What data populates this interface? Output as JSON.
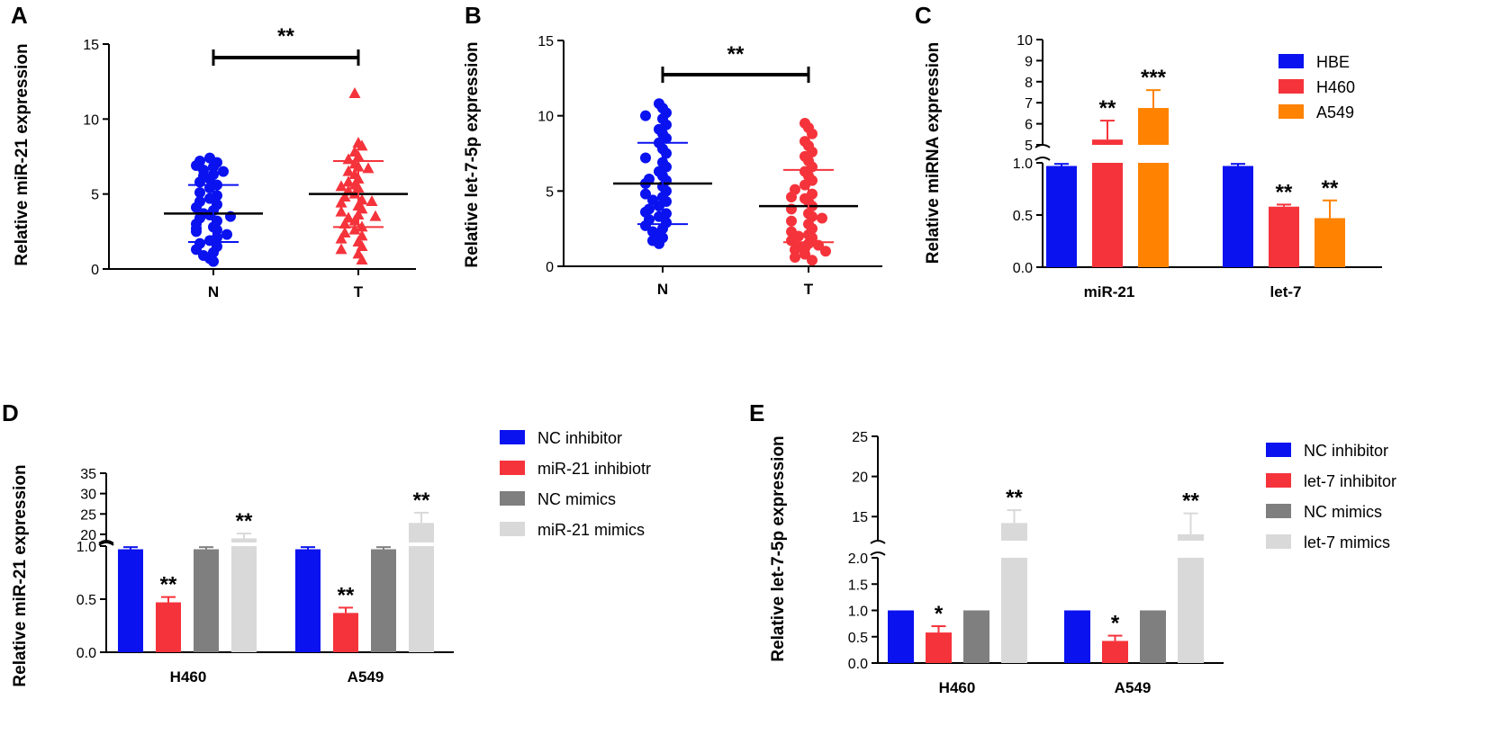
{
  "colors": {
    "blue": "#0a12f0",
    "red": "#f5333b",
    "orange": "#ff8200",
    "gray": "#7f7f7f",
    "lightgray": "#d9d9d9",
    "black": "#000000"
  },
  "chart_data": [
    {
      "panel": "A",
      "type": "scatter",
      "ylabel": "Relative miR-21 expression",
      "categories": [
        "N",
        "T"
      ],
      "yticks": [
        "0",
        "5",
        "10",
        "15"
      ],
      "ylim": [
        0,
        15
      ],
      "significance": "**",
      "groups": [
        {
          "name": "N",
          "color": "blue",
          "marker": "circle",
          "mean": 3.7,
          "sd": 1.9,
          "points": [
            7.4,
            7.2,
            7.1,
            6.9,
            6.8,
            6.6,
            6.5,
            6.3,
            6.2,
            6.0,
            5.8,
            5.6,
            5.4,
            5.1,
            4.9,
            4.7,
            4.5,
            4.3,
            4.1,
            3.9,
            3.7,
            3.6,
            3.4,
            3.2,
            3.0,
            2.8,
            2.6,
            2.5,
            2.3,
            2.1,
            1.9,
            1.7,
            1.5,
            1.3,
            1.1,
            0.9,
            0.7,
            0.5,
            3.5,
            2.7
          ]
        },
        {
          "name": "T",
          "color": "red",
          "marker": "triangle",
          "mean": 5.0,
          "sd": 2.2,
          "points": [
            11.7,
            8.4,
            8.2,
            7.8,
            7.5,
            7.3,
            7.0,
            6.8,
            6.5,
            6.3,
            6.0,
            5.8,
            5.6,
            5.4,
            5.2,
            5.0,
            4.8,
            4.6,
            4.4,
            4.2,
            4.0,
            3.8,
            3.6,
            3.4,
            3.2,
            3.0,
            2.8,
            2.6,
            2.4,
            2.2,
            2.0,
            1.8,
            1.5,
            1.3,
            1.0,
            0.6,
            5.5,
            4.5,
            3.5,
            6.7
          ]
        }
      ]
    },
    {
      "panel": "B",
      "type": "scatter",
      "ylabel": "Relative let-7-5p expression",
      "categories": [
        "N",
        "T"
      ],
      "yticks": [
        "0",
        "5",
        "10",
        "15"
      ],
      "ylim": [
        0,
        15
      ],
      "significance": "**",
      "groups": [
        {
          "name": "N",
          "color": "blue",
          "marker": "circle",
          "mean": 5.5,
          "sd": 2.7,
          "points": [
            10.8,
            10.5,
            10.2,
            10.0,
            9.8,
            9.4,
            9.1,
            8.8,
            8.5,
            8.2,
            7.8,
            7.5,
            7.2,
            6.9,
            6.6,
            6.3,
            6.0,
            5.7,
            5.5,
            5.3,
            5.0,
            4.8,
            4.6,
            4.3,
            4.0,
            3.8,
            3.5,
            3.3,
            3.1,
            2.9,
            2.7,
            2.5,
            2.3,
            2.1,
            1.9,
            1.7,
            1.5,
            5.8,
            4.4,
            3.6
          ]
        },
        {
          "name": "T",
          "color": "red",
          "marker": "circle",
          "mean": 4.0,
          "sd": 2.4,
          "points": [
            9.5,
            9.2,
            8.8,
            8.3,
            8.0,
            7.6,
            7.3,
            7.0,
            6.6,
            6.3,
            6.0,
            5.7,
            5.4,
            5.1,
            4.8,
            4.5,
            4.3,
            4.0,
            3.8,
            3.5,
            3.3,
            3.0,
            2.8,
            2.5,
            2.3,
            2.1,
            1.9,
            1.7,
            1.5,
            1.3,
            1.2,
            1.1,
            1.0,
            0.8,
            0.6,
            0.4,
            4.6,
            3.2,
            2.0,
            1.4
          ]
        }
      ]
    },
    {
      "panel": "C",
      "type": "bar",
      "ylabel": "Relative miRNA expression",
      "categories": [
        "miR-21",
        "let-7"
      ],
      "broken_axis": {
        "lower": [
          0,
          1.0
        ],
        "upper": [
          5,
          10
        ]
      },
      "yticks_lower": [
        "0.0",
        "0.5",
        "1.0"
      ],
      "yticks_upper": [
        "5",
        "6",
        "7",
        "8",
        "9",
        "10"
      ],
      "series": [
        {
          "name": "HBE",
          "color": "blue",
          "values": [
            0.97,
            0.97
          ],
          "errors": [
            0.02,
            0.02
          ],
          "sig": [
            "",
            ""
          ]
        },
        {
          "name": "H460",
          "color": "red",
          "values": [
            5.25,
            0.58
          ],
          "errors": [
            0.9,
            0.02
          ],
          "sig": [
            "**",
            "**"
          ]
        },
        {
          "name": "A549",
          "color": "orange",
          "values": [
            6.75,
            0.47
          ],
          "errors": [
            0.85,
            0.17
          ],
          "sig": [
            "***",
            "**"
          ]
        }
      ]
    },
    {
      "panel": "D",
      "type": "bar",
      "ylabel": "Relative miR-21 expression",
      "categories": [
        "H460",
        "A549"
      ],
      "broken_axis": {
        "lower": [
          0,
          1.0
        ],
        "upper": [
          18,
          35
        ]
      },
      "yticks_lower": [
        "0.0",
        "0.5",
        "1.0"
      ],
      "yticks_upper": [
        "20",
        "25",
        "30",
        "35"
      ],
      "series": [
        {
          "name": "NC inhibitor",
          "color": "blue",
          "values": [
            0.97,
            0.97
          ],
          "errors": [
            0.02,
            0.02
          ],
          "sig": [
            "",
            ""
          ]
        },
        {
          "name": "miR-21 inhibiotr",
          "color": "red",
          "values": [
            0.47,
            0.37
          ],
          "errors": [
            0.05,
            0.05
          ],
          "sig": [
            "**",
            "**"
          ]
        },
        {
          "name": "NC mimics",
          "color": "gray",
          "values": [
            0.97,
            0.97
          ],
          "errors": [
            0.02,
            0.02
          ],
          "sig": [
            "",
            ""
          ]
        },
        {
          "name": "miR-21 mimics",
          "color": "lightgray",
          "values": [
            19.0,
            22.8
          ],
          "errors": [
            1.2,
            2.5
          ],
          "sig": [
            "**",
            "**"
          ]
        }
      ]
    },
    {
      "panel": "E",
      "type": "bar",
      "ylabel": "Relative let-7-5p expression",
      "categories": [
        "H460",
        "A549"
      ],
      "broken_axis": {
        "lower": [
          0,
          2.0
        ],
        "upper": [
          12,
          25
        ]
      },
      "yticks_lower": [
        "0.0",
        "0.5",
        "1.0",
        "1.5",
        "2.0"
      ],
      "yticks_upper": [
        "15",
        "20",
        "25"
      ],
      "series": [
        {
          "name": "NC inhibitor",
          "color": "blue",
          "values": [
            1.0,
            1.0
          ],
          "errors": [
            0,
            0
          ],
          "sig": [
            "",
            ""
          ]
        },
        {
          "name": "let-7 inhibitor",
          "color": "red",
          "values": [
            0.58,
            0.42
          ],
          "errors": [
            0.12,
            0.1
          ],
          "sig": [
            "*",
            "*"
          ]
        },
        {
          "name": "NC mimics",
          "color": "gray",
          "values": [
            1.0,
            1.0
          ],
          "errors": [
            0,
            0
          ],
          "sig": [
            "",
            ""
          ]
        },
        {
          "name": "let-7 mimics",
          "color": "lightgray",
          "values": [
            14.2,
            12.8
          ],
          "errors": [
            1.6,
            2.6
          ],
          "sig": [
            "**",
            "**"
          ]
        }
      ]
    }
  ]
}
